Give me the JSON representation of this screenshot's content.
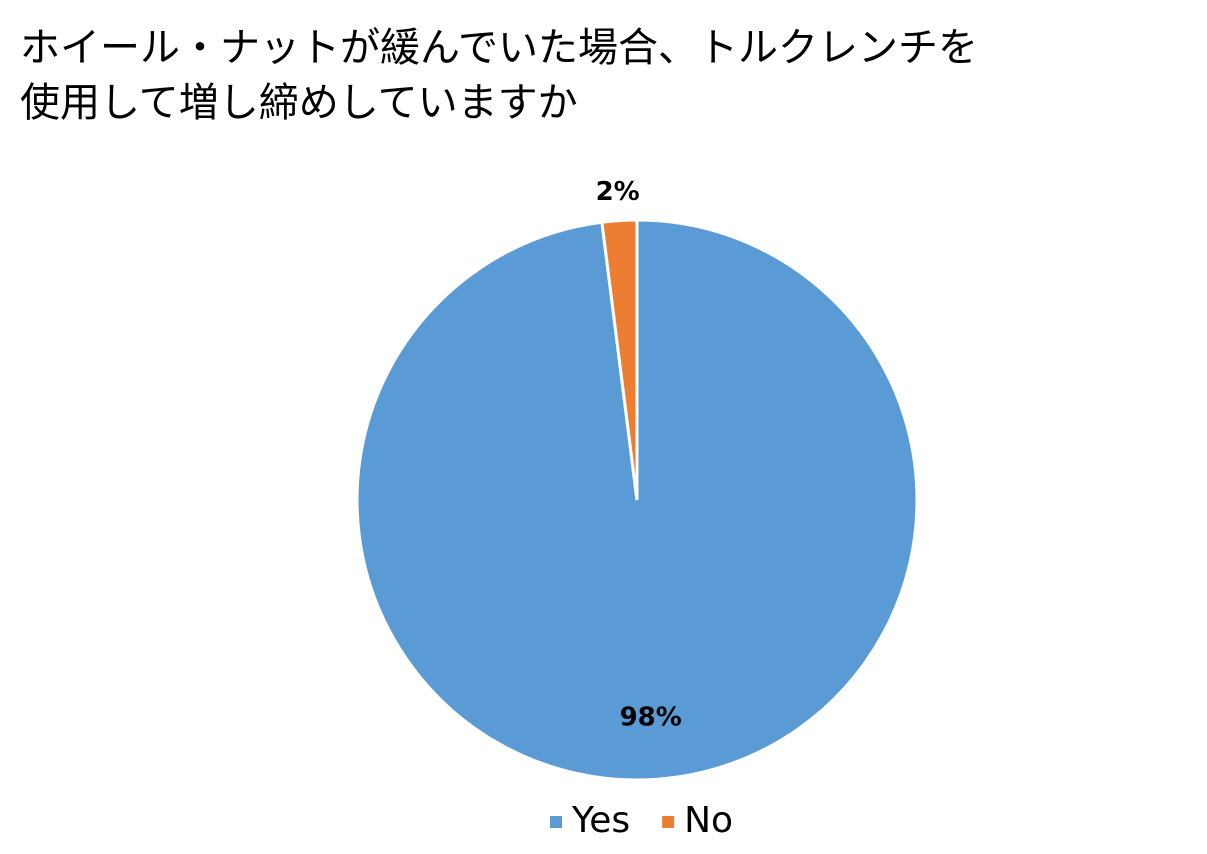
{
  "chart_data": {
    "type": "pie",
    "title": [
      "ホイール・ナットが緩んでいた場合、トルクレンチを",
      "使用して増し締めしていますか"
    ],
    "categories": [
      "Yes",
      "No"
    ],
    "values": [
      98,
      2
    ],
    "value_labels": [
      "98%",
      "2%"
    ],
    "colors": [
      "#5b9bd5",
      "#ed7d31"
    ],
    "legend": "bottom"
  }
}
